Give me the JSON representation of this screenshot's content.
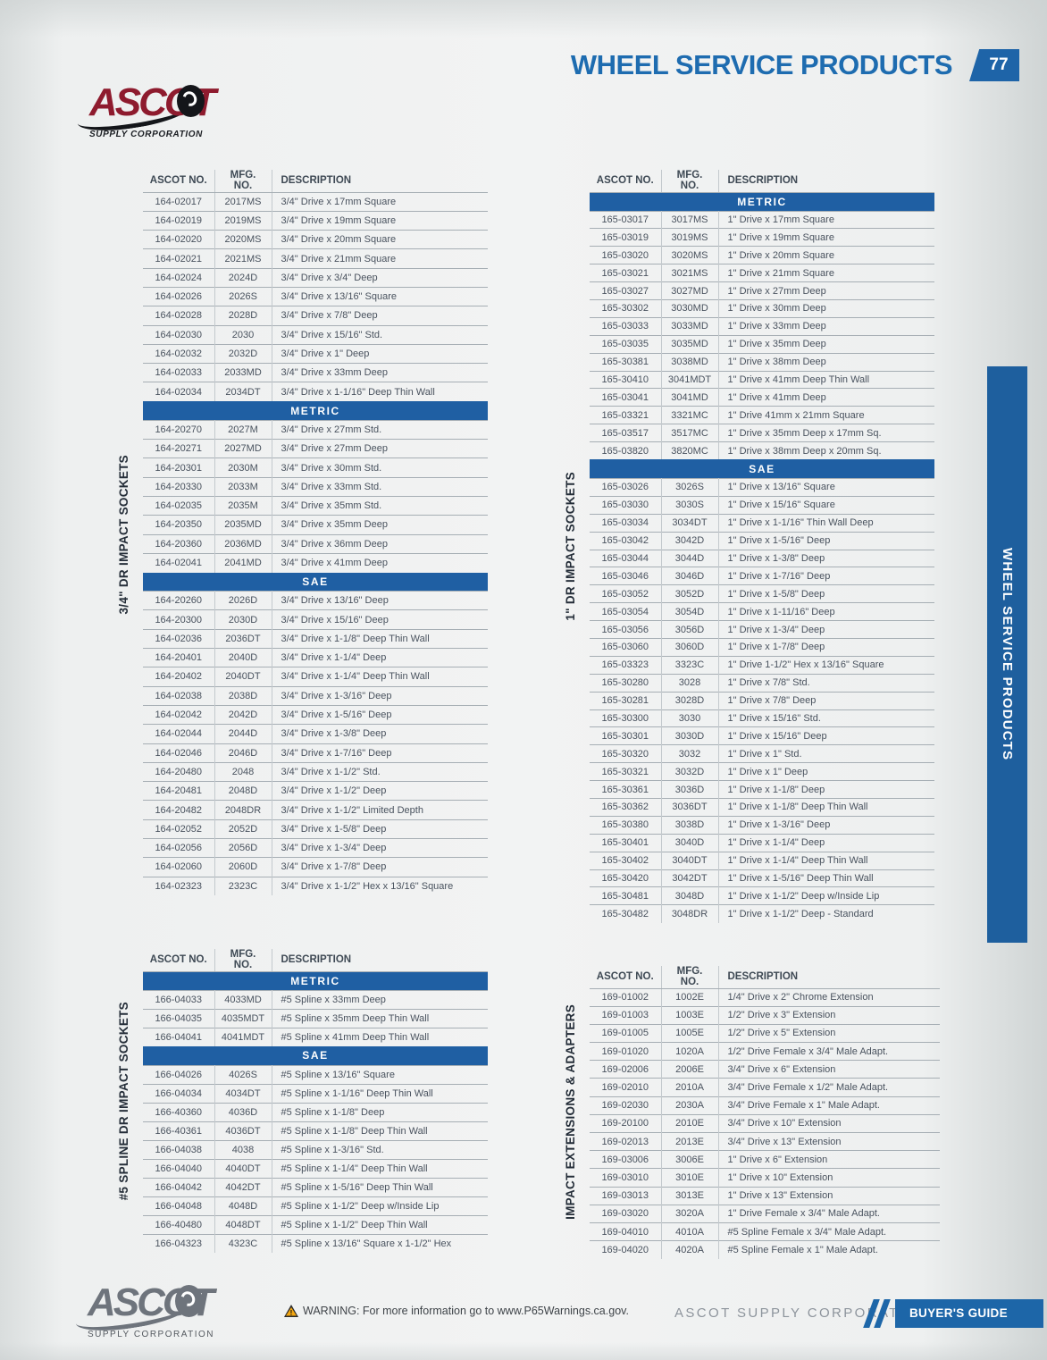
{
  "page": {
    "title": "WHEEL SERVICE PRODUCTS",
    "number": "77"
  },
  "logo": {
    "brand": "ASCOT",
    "tagline": "SUPPLY CORPORATION"
  },
  "side_tab": "WHEEL SERVICE PRODUCTS",
  "colors": {
    "accent_blue": "#1f5fa3",
    "brand_maroon": "#8e1b2e",
    "guide_blue": "#1d66a8"
  },
  "icons": {
    "warning": "triangle-exclamation",
    "tire": "tire-logo-o",
    "swoosh": "logo-swoosh"
  },
  "tables": [
    {
      "side_label": "3/4\" DR IMPACT SOCKETS",
      "columns": [
        "ASCOT NO.",
        "MFG. NO.",
        "DESCRIPTION"
      ],
      "rows": [
        [
          "164-02017",
          "2017MS",
          "3/4\" Drive x 17mm Square"
        ],
        [
          "164-02019",
          "2019MS",
          "3/4\" Drive x 19mm Square"
        ],
        [
          "164-02020",
          "2020MS",
          "3/4\" Drive x 20mm Square"
        ],
        [
          "164-02021",
          "2021MS",
          "3/4\" Drive x 21mm Square"
        ],
        [
          "164-02024",
          "2024D",
          "3/4\" Drive x 3/4\" Deep"
        ],
        [
          "164-02026",
          "2026S",
          "3/4\" Drive x 13/16\" Square"
        ],
        [
          "164-02028",
          "2028D",
          "3/4\" Drive x 7/8\" Deep"
        ],
        [
          "164-02030",
          "2030",
          "3/4\" Drive x 15/16\" Std."
        ],
        [
          "164-02032",
          "2032D",
          "3/4\" Drive x 1\" Deep"
        ],
        [
          "164-02033",
          "2033MD",
          "3/4\" Drive x 33mm Deep"
        ],
        [
          "164-02034",
          "2034DT",
          "3/4\" Drive x 1-1/16\" Deep Thin Wall"
        ],
        {
          "s": "METRIC"
        },
        [
          "164-20270",
          "2027M",
          "3/4\" Drive x 27mm Std."
        ],
        [
          "164-20271",
          "2027MD",
          "3/4\" Drive x 27mm Deep"
        ],
        [
          "164-20301",
          "2030M",
          "3/4\" Drive x 30mm Std."
        ],
        [
          "164-20330",
          "2033M",
          "3/4\" Drive x 33mm Std."
        ],
        [
          "164-02035",
          "2035M",
          "3/4\" Drive x 35mm Std."
        ],
        [
          "164-20350",
          "2035MD",
          "3/4\" Drive x 35mm Deep"
        ],
        [
          "164-20360",
          "2036MD",
          "3/4\" Drive x 36mm Deep"
        ],
        [
          "164-02041",
          "2041MD",
          "3/4\" Drive x 41mm Deep"
        ],
        {
          "s": "SAE"
        },
        [
          "164-20260",
          "2026D",
          "3/4\" Drive x 13/16\" Deep"
        ],
        [
          "164-20300",
          "2030D",
          "3/4\" Drive x 15/16\" Deep"
        ],
        [
          "164-02036",
          "2036DT",
          "3/4\" Drive x 1-1/8\" Deep Thin Wall"
        ],
        [
          "164-20401",
          "2040D",
          "3/4\" Drive x 1-1/4\" Deep"
        ],
        [
          "164-20402",
          "2040DT",
          "3/4\" Drive x 1-1/4\" Deep Thin Wall"
        ],
        [
          "164-02038",
          "2038D",
          "3/4\" Drive x 1-3/16\" Deep"
        ],
        [
          "164-02042",
          "2042D",
          "3/4\" Drive x 1-5/16\" Deep"
        ],
        [
          "164-02044",
          "2044D",
          "3/4\" Drive x 1-3/8\" Deep"
        ],
        [
          "164-02046",
          "2046D",
          "3/4\" Drive x 1-7/16\" Deep"
        ],
        [
          "164-20480",
          "2048",
          "3/4\" Drive x 1-1/2\" Std."
        ],
        [
          "164-20481",
          "2048D",
          "3/4\" Drive x 1-1/2\" Deep"
        ],
        [
          "164-20482",
          "2048DR",
          "3/4\" Drive x 1-1/2\" Limited Depth"
        ],
        [
          "164-02052",
          "2052D",
          "3/4\" Drive x 1-5/8\" Deep"
        ],
        [
          "164-02056",
          "2056D",
          "3/4\" Drive x 1-3/4\" Deep"
        ],
        [
          "164-02060",
          "2060D",
          "3/4\" Drive x 1-7/8\" Deep"
        ],
        [
          "164-02323",
          "2323C",
          "3/4\" Drive x 1-1/2\" Hex x 13/16\" Square"
        ]
      ]
    },
    {
      "side_label": "1\" DR IMPACT SOCKETS",
      "columns": [
        "ASCOT NO.",
        "MFG. NO.",
        "DESCRIPTION"
      ],
      "rows": [
        {
          "s": "METRIC"
        },
        [
          "165-03017",
          "3017MS",
          "1\" Drive x 17mm Square"
        ],
        [
          "165-03019",
          "3019MS",
          "1\" Drive x 19mm Square"
        ],
        [
          "165-03020",
          "3020MS",
          "1\" Drive x 20mm Square"
        ],
        [
          "165-03021",
          "3021MS",
          "1\" Drive x 21mm Square"
        ],
        [
          "165-03027",
          "3027MD",
          "1\" Drive x 27mm Deep"
        ],
        [
          "165-30302",
          "3030MD",
          "1\" Drive x 30mm Deep"
        ],
        [
          "165-03033",
          "3033MD",
          "1\" Drive x 33mm Deep"
        ],
        [
          "165-03035",
          "3035MD",
          "1\" Drive x 35mm Deep"
        ],
        [
          "165-30381",
          "3038MD",
          "1\" Drive x 38mm Deep"
        ],
        [
          "165-30410",
          "3041MDT",
          "1\" Drive x 41mm Deep Thin Wall"
        ],
        [
          "165-03041",
          "3041MD",
          "1\" Drive x 41mm Deep"
        ],
        [
          "165-03321",
          "3321MC",
          "1\" Drive 41mm x 21mm Square"
        ],
        [
          "165-03517",
          "3517MC",
          "1\" Drive x 35mm Deep x 17mm Sq."
        ],
        [
          "165-03820",
          "3820MC",
          "1\" Drive x 38mm Deep x 20mm Sq."
        ],
        {
          "s": "SAE"
        },
        [
          "165-03026",
          "3026S",
          "1\" Drive x 13/16\" Square"
        ],
        [
          "165-03030",
          "3030S",
          "1\" Drive x 15/16\" Square"
        ],
        [
          "165-03034",
          "3034DT",
          "1\" Drive x 1-1/16\" Thin Wall Deep"
        ],
        [
          "165-03042",
          "3042D",
          "1\" Drive x 1-5/16\" Deep"
        ],
        [
          "165-03044",
          "3044D",
          "1\" Drive x 1-3/8\" Deep"
        ],
        [
          "165-03046",
          "3046D",
          "1\" Drive x 1-7/16\" Deep"
        ],
        [
          "165-03052",
          "3052D",
          "1\" Drive x 1-5/8\" Deep"
        ],
        [
          "165-03054",
          "3054D",
          "1\" Drive x 1-11/16\" Deep"
        ],
        [
          "165-03056",
          "3056D",
          "1\" Drive x 1-3/4\" Deep"
        ],
        [
          "165-03060",
          "3060D",
          "1\" Drive x 1-7/8\" Deep"
        ],
        [
          "165-03323",
          "3323C",
          "1\" Drive 1-1/2\" Hex x 13/16\" Square"
        ],
        [
          "165-30280",
          "3028",
          "1\" Drive x 7/8\" Std."
        ],
        [
          "165-30281",
          "3028D",
          "1\" Drive x 7/8\" Deep"
        ],
        [
          "165-30300",
          "3030",
          "1\" Drive x 15/16\" Std."
        ],
        [
          "165-30301",
          "3030D",
          "1\" Drive x 15/16\" Deep"
        ],
        [
          "165-30320",
          "3032",
          "1\" Drive x 1\" Std."
        ],
        [
          "165-30321",
          "3032D",
          "1\" Drive x 1\" Deep"
        ],
        [
          "165-30361",
          "3036D",
          "1\" Drive x 1-1/8\" Deep"
        ],
        [
          "165-30362",
          "3036DT",
          "1\" Drive x 1-1/8\" Deep Thin Wall"
        ],
        [
          "165-30380",
          "3038D",
          "1\" Drive x 1-3/16\" Deep"
        ],
        [
          "165-30401",
          "3040D",
          "1\" Drive x 1-1/4\" Deep"
        ],
        [
          "165-30402",
          "3040DT",
          "1\" Drive x 1-1/4\" Deep Thin Wall"
        ],
        [
          "165-30420",
          "3042DT",
          "1\" Drive x 1-5/16\" Deep Thin Wall"
        ],
        [
          "165-30481",
          "3048D",
          "1\" Drive x 1-1/2\" Deep w/Inside Lip"
        ],
        [
          "165-30482",
          "3048DR",
          "1\" Drive x 1-1/2\" Deep - Standard"
        ]
      ]
    },
    {
      "side_label": "#5 SPLINE DR IMPACT SOCKETS",
      "columns": [
        "ASCOT NO.",
        "MFG. NO.",
        "DESCRIPTION"
      ],
      "rows": [
        {
          "s": "METRIC"
        },
        [
          "166-04033",
          "4033MD",
          "#5 Spline x 33mm Deep"
        ],
        [
          "166-04035",
          "4035MDT",
          "#5 Spline x 35mm Deep Thin Wall"
        ],
        [
          "166-04041",
          "4041MDT",
          "#5 Spline x 41mm Deep Thin Wall"
        ],
        {
          "s": "SAE"
        },
        [
          "166-04026",
          "4026S",
          "#5 Spline x 13/16\" Square"
        ],
        [
          "166-04034",
          "4034DT",
          "#5 Spline x 1-1/16\" Deep Thin Wall"
        ],
        [
          "166-40360",
          "4036D",
          "#5 Spline x 1-1/8\" Deep"
        ],
        [
          "166-40361",
          "4036DT",
          "#5 Spline x 1-1/8\" Deep Thin Wall"
        ],
        [
          "166-04038",
          "4038",
          "#5 Spline x 1-3/16\" Std."
        ],
        [
          "166-04040",
          "4040DT",
          "#5 Spline x 1-1/4\" Deep Thin Wall"
        ],
        [
          "166-04042",
          "4042DT",
          "#5 Spline x 1-5/16\" Deep Thin Wall"
        ],
        [
          "166-04048",
          "4048D",
          "#5 Spline x 1-1/2\" Deep w/Inside Lip"
        ],
        [
          "166-40480",
          "4048DT",
          "#5 Spline x 1-1/2\" Deep Thin Wall"
        ],
        [
          "166-04323",
          "4323C",
          "#5 Spline x 13/16\" Square x 1-1/2\" Hex"
        ]
      ]
    },
    {
      "side_label": "IMPACT EXTENSIONS & ADAPTERS",
      "columns": [
        "ASCOT NO.",
        "MFG. NO.",
        "DESCRIPTION"
      ],
      "rows": [
        [
          "169-01002",
          "1002E",
          "1/4\" Drive x 2\" Chrome Extension"
        ],
        [
          "169-01003",
          "1003E",
          "1/2\" Drive x 3\" Extension"
        ],
        [
          "169-01005",
          "1005E",
          "1/2\" Drive x 5\" Extension"
        ],
        [
          "169-01020",
          "1020A",
          "1/2\" Drive Female x 3/4\" Male Adapt."
        ],
        [
          "169-02006",
          "2006E",
          "3/4\" Drive x 6\" Extension"
        ],
        [
          "169-02010",
          "2010A",
          "3/4\" Drive Female x 1/2\" Male Adapt."
        ],
        [
          "169-02030",
          "2030A",
          "3/4\" Drive Female x 1\" Male Adapt."
        ],
        [
          "169-20100",
          "2010E",
          "3/4\" Drive x 10\" Extension"
        ],
        [
          "169-02013",
          "2013E",
          "3/4\" Drive x 13\" Extension"
        ],
        [
          "169-03006",
          "3006E",
          "1\" Drive x 6\" Extension"
        ],
        [
          "169-03010",
          "3010E",
          "1\" Drive x 10\" Extension"
        ],
        [
          "169-03013",
          "3013E",
          "1\" Drive x 13\" Extension"
        ],
        [
          "169-03020",
          "3020A",
          "1\" Drive Female x 3/4\" Male Adapt."
        ],
        [
          "169-04010",
          "4010A",
          "#5 Spline Female x 3/4\" Male Adapt."
        ],
        [
          "169-04020",
          "4020A",
          "#5 Spline Female x 1\" Male Adapt."
        ]
      ]
    }
  ],
  "footer": {
    "warning": "WARNING: For more information go to www.P65Warnings.ca.gov.",
    "warning_exclaim": "!",
    "company": "ASCOT SUPPLY CORPORATION",
    "guide": "BUYER'S GUIDE"
  }
}
